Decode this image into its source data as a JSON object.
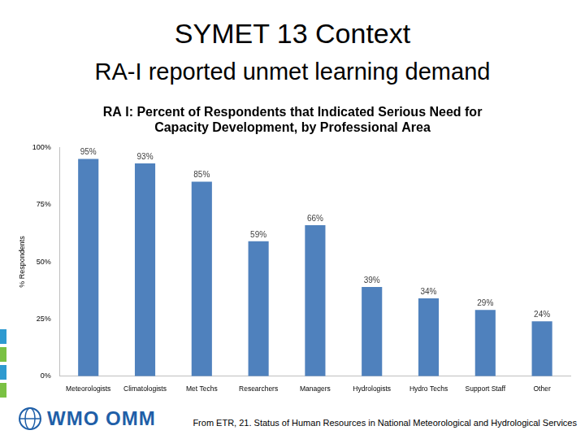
{
  "header": {
    "title": "SYMET 13 Context",
    "subtitle": "RA-I reported unmet learning demand"
  },
  "footer": {
    "logo": "WMO OMM",
    "source": "From ETR, 21. Status of Human Resources in National Meteorological and Hydrological Services"
  },
  "chart_data": {
    "type": "bar",
    "title": [
      "RA I: Percent of Respondents that Indicated Serious Need for",
      "Capacity Development, by Professional Area"
    ],
    "y_label": "% Respondents",
    "categories": [
      "Meteorologists",
      "Climatologists",
      "Met Techs",
      "Researchers",
      "Managers",
      "Hydrologists",
      "Hydro Techs",
      "Support Staff",
      "Other"
    ],
    "values": [
      95,
      93,
      85,
      59,
      66,
      39,
      34,
      29,
      24
    ],
    "value_labels": [
      "95%",
      "93%",
      "85%",
      "59%",
      "66%",
      "39%",
      "34%",
      "29%",
      "24%"
    ],
    "data_labels": true,
    "color": "#4f81bd",
    "ylim": [
      0,
      100
    ],
    "yticks": [
      {
        "value": 0,
        "label": "0%"
      },
      {
        "value": 25,
        "label": "25%"
      },
      {
        "value": 50,
        "label": "50%"
      },
      {
        "value": 75,
        "label": "75%"
      },
      {
        "value": 100,
        "label": "100%"
      }
    ],
    "grid": false
  }
}
